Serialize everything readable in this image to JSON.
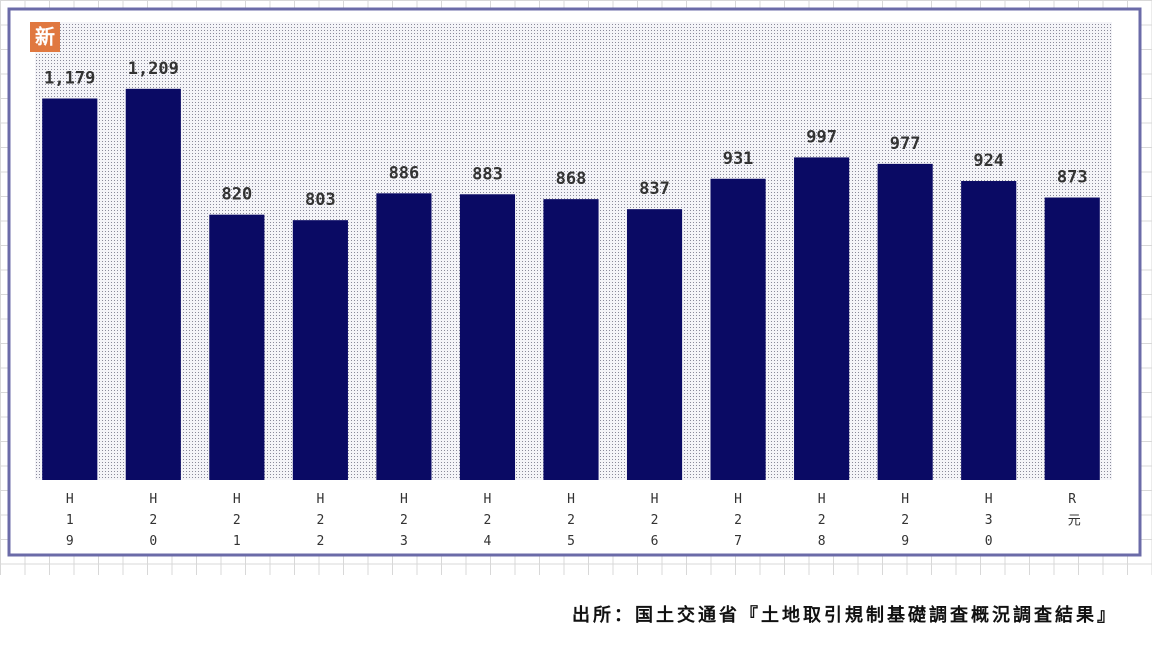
{
  "chart_data": {
    "type": "bar",
    "badge": "新",
    "categories": [
      "H19",
      "H20",
      "H21",
      "H22",
      "H23",
      "H24",
      "H25",
      "H26",
      "H27",
      "H28",
      "H29",
      "H30",
      "R元"
    ],
    "values": [
      1179,
      1209,
      820,
      803,
      886,
      883,
      868,
      837,
      931,
      997,
      977,
      924,
      873
    ],
    "value_labels": [
      "1,179",
      "1,209",
      "820",
      "803",
      "886",
      "883",
      "868",
      "837",
      "931",
      "997",
      "977",
      "924",
      "873"
    ],
    "color": "#0a0a64",
    "ylim": [
      0,
      1400
    ],
    "source": "出所：国土交通省『土地取引規制基礎調査概況調査結果』"
  }
}
